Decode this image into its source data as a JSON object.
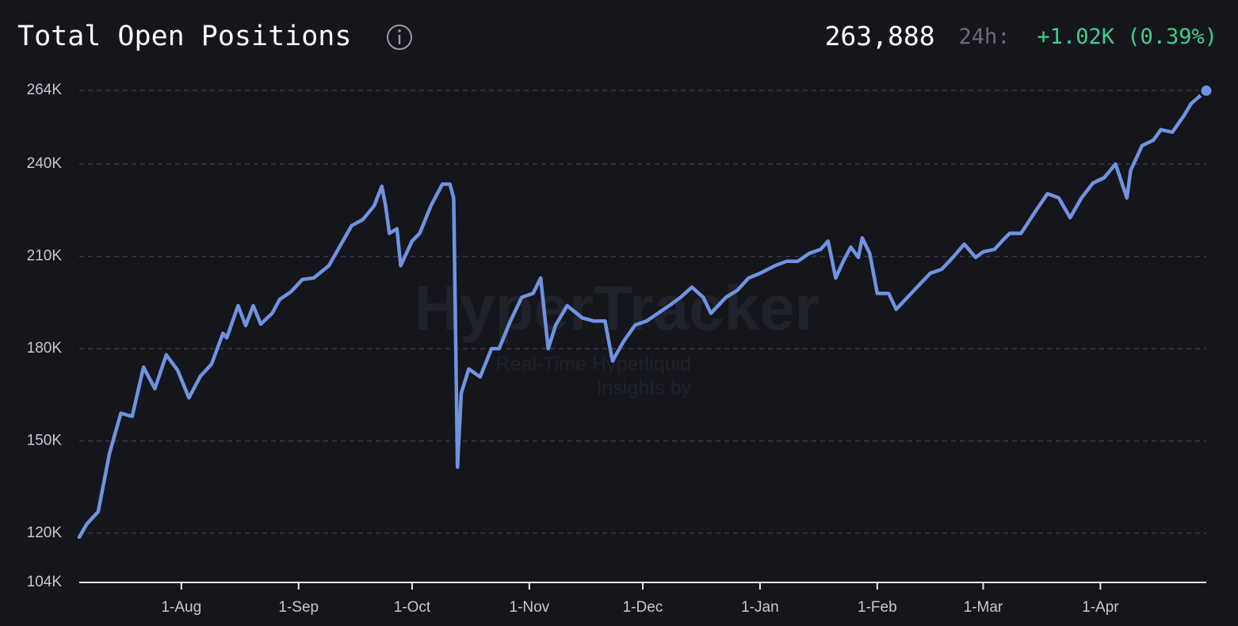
{
  "header": {
    "title": "Total Open Positions",
    "value": "263,888",
    "period": "24h:",
    "change": "+1.02K (0.39%)"
  },
  "watermark": {
    "brand": "HyperTracker",
    "line1": "Real-Time Hyperliquid",
    "line2": "Insights by"
  },
  "chart_data": {
    "type": "line",
    "x": [
      "5-Jul",
      "7-Jul",
      "10-Jul",
      "13-Jul",
      "16-Jul",
      "19-Jul",
      "22-Jul",
      "25-Jul",
      "28-Jul",
      "31-Jul",
      "3-Aug",
      "6-Aug",
      "9-Aug",
      "12-Aug",
      "13-Aug",
      "16-Aug",
      "18-Aug",
      "20-Aug",
      "22-Aug",
      "25-Aug",
      "27-Aug",
      "30-Aug",
      "2-Sep",
      "5-Sep",
      "9-Sep",
      "12-Sep",
      "15-Sep",
      "18-Sep",
      "21-Sep",
      "23-Sep",
      "24-Sep",
      "25-Sep",
      "27-Sep",
      "28-Sep",
      "1-Oct",
      "3-Oct",
      "6-Oct",
      "9-Oct",
      "11-Oct",
      "12-Oct",
      "13-Oct",
      "14-Oct",
      "16-Oct",
      "19-Oct",
      "22-Oct",
      "24-Oct",
      "27-Oct",
      "30-Oct",
      "2-Nov",
      "4-Nov",
      "6-Nov",
      "8-Nov",
      "11-Nov",
      "15-Nov",
      "18-Nov",
      "21-Nov",
      "23-Nov",
      "26-Nov",
      "29-Nov",
      "2-Dec",
      "5-Dec",
      "8-Dec",
      "11-Dec",
      "14-Dec",
      "17-Dec",
      "19-Dec",
      "23-Dec",
      "26-Dec",
      "29-Dec",
      "1-Jan",
      "5-Jan",
      "8-Jan",
      "11-Jan",
      "14-Jan",
      "17-Jan",
      "19-Jan",
      "21-Jan",
      "23-Jan",
      "25-Jan",
      "27-Jan",
      "28-Jan",
      "30-Jan",
      "1-Feb",
      "4-Feb",
      "6-Feb",
      "9-Feb",
      "12-Feb",
      "15-Feb",
      "18-Feb",
      "21-Feb",
      "24-Feb",
      "27-Feb",
      "1-Mar",
      "4-Mar",
      "6-Mar",
      "8-Mar",
      "11-Mar",
      "15-Mar",
      "18-Mar",
      "21-Mar",
      "24-Mar",
      "27-Mar",
      "30-Mar",
      "2-Apr",
      "5-Apr",
      "8-Apr",
      "9-Apr",
      "12-Apr",
      "15-Apr",
      "17-Apr",
      "20-Apr",
      "23-Apr",
      "25-Apr",
      "29-Apr"
    ],
    "series": [
      {
        "color": "#6f93e0",
        "values": [
          118700,
          123000,
          127000,
          146000,
          159000,
          158000,
          174000,
          167000,
          178000,
          173000,
          164000,
          171000,
          175000,
          185000,
          183500,
          194000,
          187500,
          194000,
          188000,
          191500,
          196000,
          198500,
          202500,
          203000,
          207000,
          213500,
          220000,
          222000,
          226500,
          232800,
          226500,
          217500,
          219000,
          207000,
          215000,
          217500,
          226500,
          233500,
          233500,
          229000,
          141500,
          165600,
          173400,
          170800,
          180000,
          180000,
          189000,
          196700,
          198000,
          203000,
          180000,
          187700,
          194000,
          190000,
          189000,
          189000,
          176000,
          182500,
          187700,
          189000,
          191500,
          194000,
          196700,
          200000,
          196700,
          191500,
          196700,
          199000,
          203000,
          204500,
          207000,
          208400,
          208400,
          211000,
          212300,
          215000,
          203000,
          208400,
          213000,
          209700,
          216000,
          211000,
          198000,
          198000,
          192800,
          196700,
          200600,
          204500,
          205800,
          209700,
          214000,
          209700,
          211500,
          212300,
          215000,
          217500,
          217500,
          225000,
          230400,
          229000,
          222600,
          229000,
          233800,
          235600,
          240000,
          229000,
          238000,
          246000,
          247800,
          251200,
          250400,
          255600,
          259700,
          263888
        ]
      }
    ],
    "xlim": [
      "5-Jul",
      "29-Apr"
    ],
    "xticks": [
      "1-Aug",
      "1-Sep",
      "1-Oct",
      "1-Nov",
      "1-Dec",
      "1-Jan",
      "1-Feb",
      "1-Mar",
      "1-Apr"
    ],
    "ylim": [
      104000,
      264000
    ],
    "yticks": [
      {
        "value": 104000,
        "label": "104K"
      },
      {
        "value": 120000,
        "label": "120K"
      },
      {
        "value": 150000,
        "label": "150K"
      },
      {
        "value": 180000,
        "label": "180K"
      },
      {
        "value": 210000,
        "label": "210K"
      },
      {
        "value": 240000,
        "label": "240K"
      },
      {
        "value": 264000,
        "label": "264K"
      }
    ],
    "grid": true
  }
}
